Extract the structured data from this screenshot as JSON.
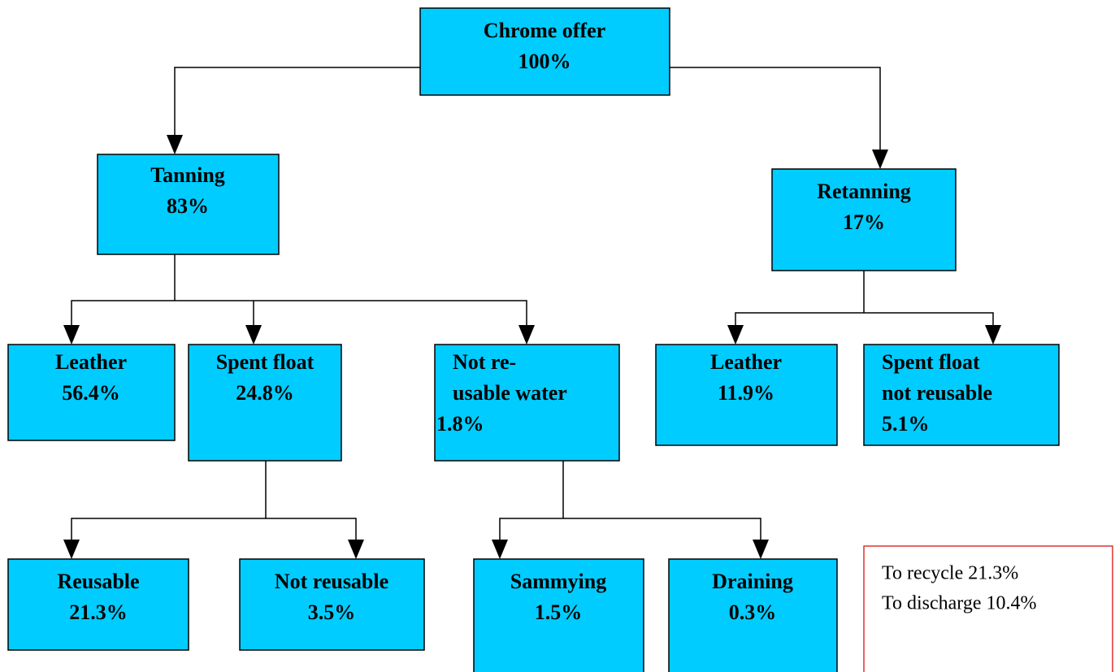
{
  "nodes": [
    {
      "lines": [
        "Chrome offer",
        "100%"
      ]
    },
    {
      "lines": [
        "Tanning",
        "83%"
      ]
    },
    {
      "lines": [
        "Retanning",
        "17%"
      ]
    },
    {
      "lines": [
        "Leather",
        "56.4%"
      ]
    },
    {
      "lines": [
        "Spent float",
        "24.8%"
      ]
    },
    {
      "lines": [
        "Not re-",
        "usable water",
        "1.8%"
      ]
    },
    {
      "lines": [
        "Leather",
        "11.9%"
      ]
    },
    {
      "lines": [
        "Spent float",
        "not reusable",
        "5.1%"
      ]
    },
    {
      "lines": [
        "Reusable",
        "21.3%"
      ]
    },
    {
      "lines": [
        "Not reusable",
        "3.5%"
      ]
    },
    {
      "lines": [
        "Sammying",
        "1.5%"
      ]
    },
    {
      "lines": [
        "Draining",
        "0.3%"
      ]
    }
  ],
  "summary": {
    "lines": [
      "To recycle 21.3%",
      "To discharge 10.4%"
    ]
  }
}
